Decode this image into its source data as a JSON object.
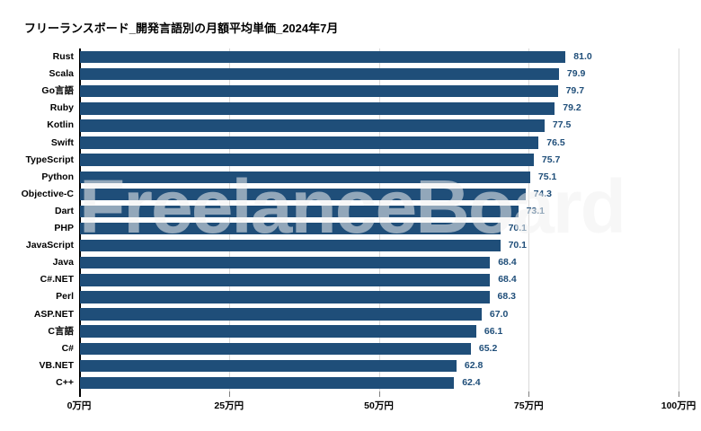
{
  "title": "フリーランスボード_開発言語別の月額平均単価_2024年7月",
  "watermark": "FreelanceBoard",
  "colors": {
    "bar": "#1f4e79",
    "value_label": "#1f4e79",
    "gridline": "#d9d9d9",
    "axis": "#000000",
    "background": "#ffffff"
  },
  "chart_data": {
    "type": "bar",
    "orientation": "horizontal",
    "title": "フリーランスボード_開発言語別の月額平均単価_2024年7月",
    "categories": [
      "Rust",
      "Scala",
      "Go言語",
      "Ruby",
      "Kotlin",
      "Swift",
      "TypeScript",
      "Python",
      "Objective-C",
      "Dart",
      "PHP",
      "JavaScript",
      "Java",
      "C#.NET",
      "Perl",
      "ASP.NET",
      "C言語",
      "C#",
      "VB.NET",
      "C++"
    ],
    "values": [
      81.0,
      79.9,
      79.7,
      79.2,
      77.5,
      76.5,
      75.7,
      75.1,
      74.3,
      73.1,
      70.1,
      70.1,
      68.4,
      68.4,
      68.3,
      67.0,
      66.1,
      65.2,
      62.8,
      62.4
    ],
    "value_format_decimals": 1,
    "value_unit": "万円",
    "xlabel": "",
    "ylabel": "",
    "xlim": [
      0,
      100
    ],
    "xticks": [
      {
        "value": 0,
        "label": "0万円"
      },
      {
        "value": 25,
        "label": "25万円"
      },
      {
        "value": 50,
        "label": "50万円"
      },
      {
        "value": 75,
        "label": "75万円"
      },
      {
        "value": 100,
        "label": "100万円"
      }
    ],
    "grid": true,
    "legend": false
  }
}
